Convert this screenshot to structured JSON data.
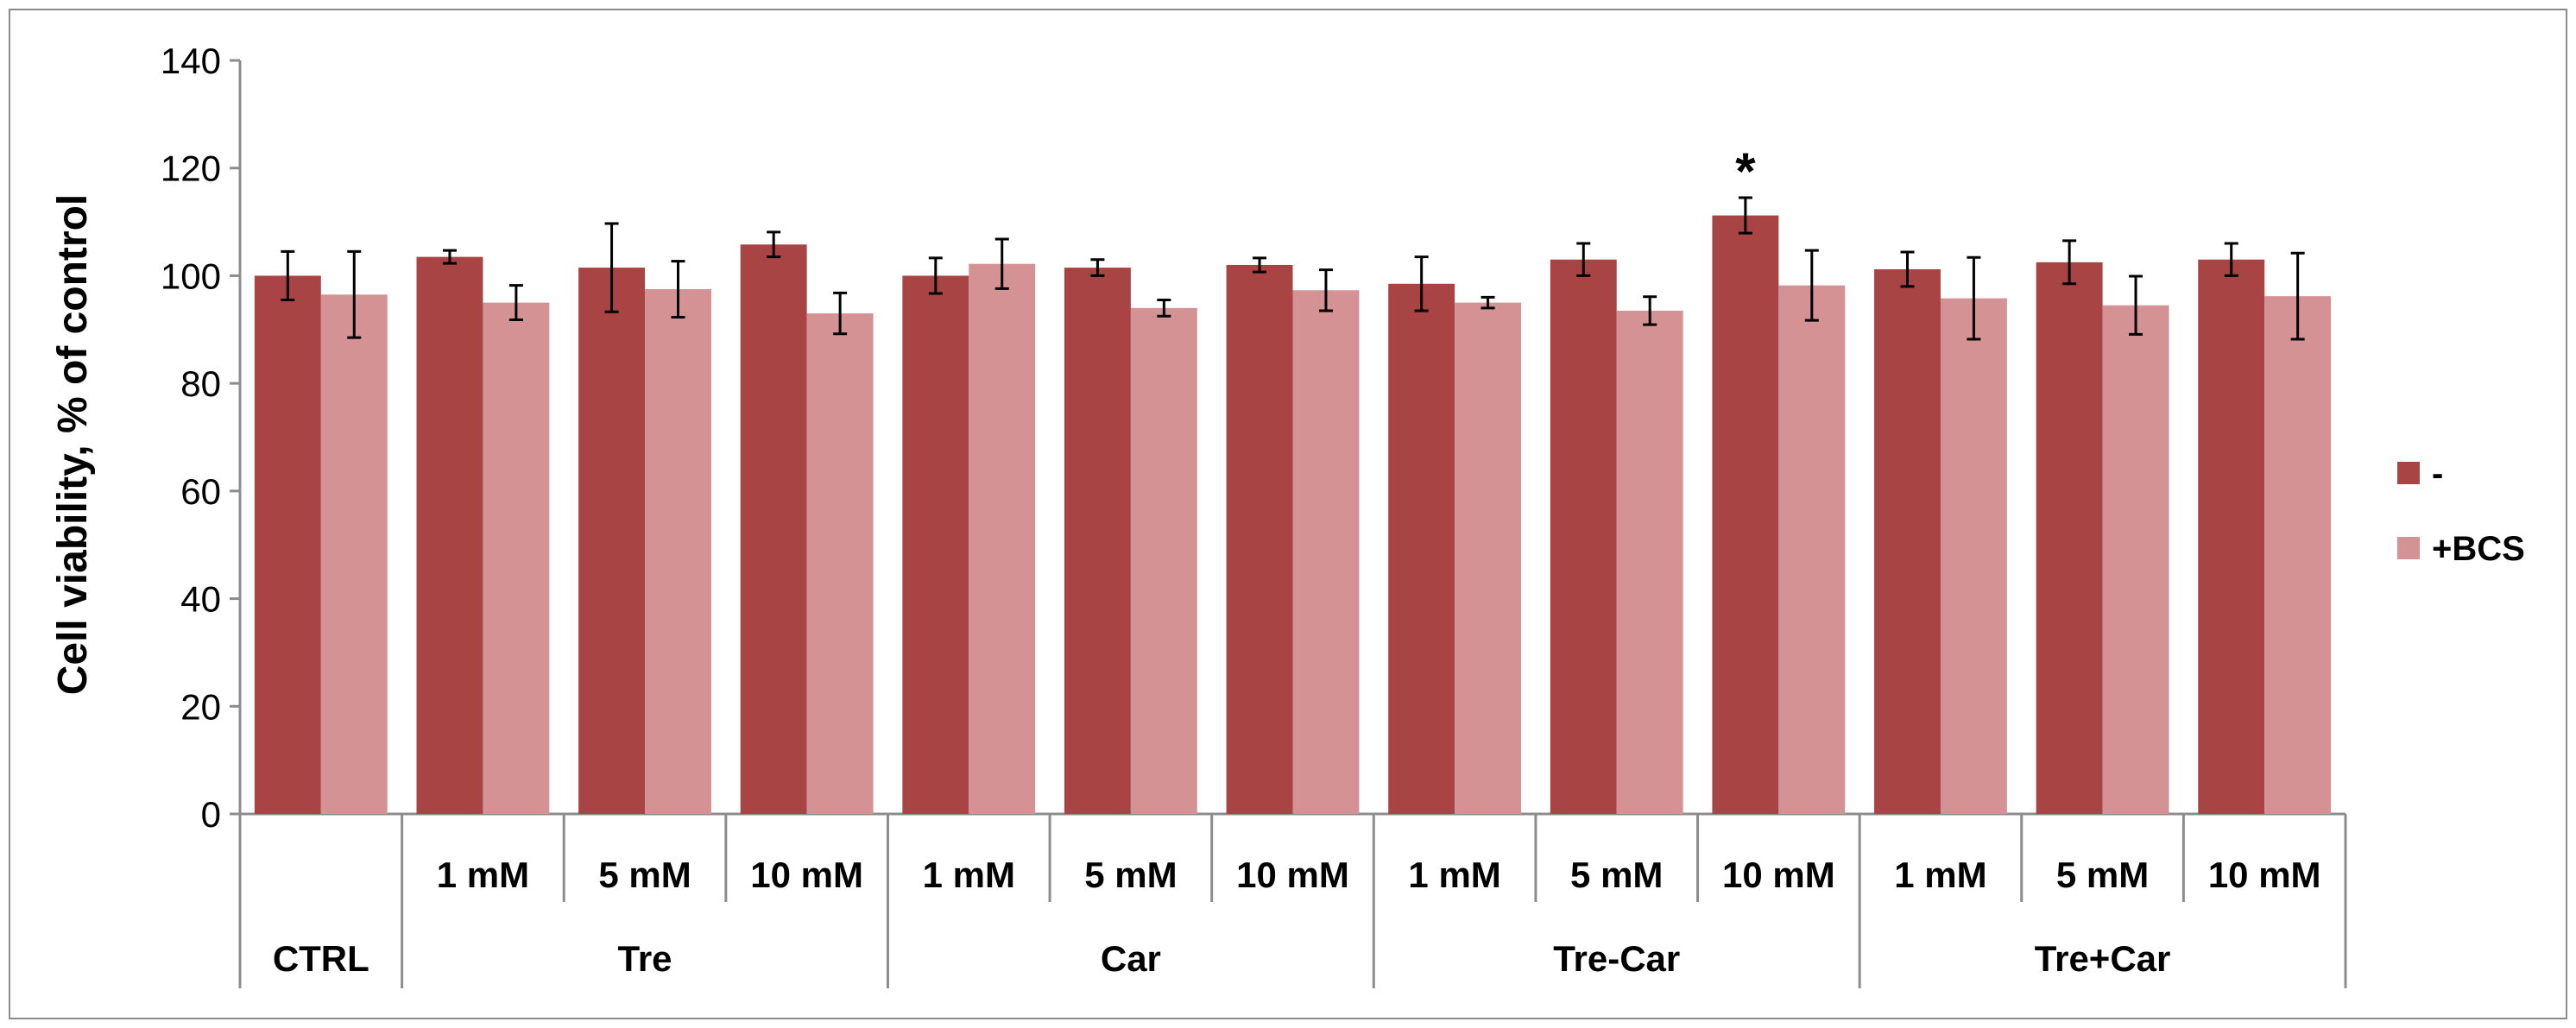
{
  "chart_data": {
    "type": "bar",
    "title": "",
    "xlabel": "",
    "ylabel": "Cell viability, % of control",
    "ylim": [
      0,
      140
    ],
    "yticks": [
      0,
      20,
      40,
      60,
      80,
      100,
      120,
      140
    ],
    "grid": false,
    "legend_position": "right",
    "categories": [
      "",
      "1 mM",
      "5 mM",
      "10 mM",
      "1 mM",
      "5 mM",
      "10 mM",
      "1 mM",
      "5 mM",
      "10 mM",
      "1 mM",
      "5 mM",
      "10 mM"
    ],
    "groups": [
      {
        "label": "CTRL",
        "count": 1
      },
      {
        "label": "Tre",
        "count": 3
      },
      {
        "label": "Car",
        "count": 3
      },
      {
        "label": "Tre-Car",
        "count": 3
      },
      {
        "label": "Tre+Car",
        "count": 3
      }
    ],
    "series": [
      {
        "name": "-",
        "color": "#a84444",
        "values": [
          100,
          103.5,
          101.5,
          105.8,
          100,
          101.5,
          102,
          98.5,
          103,
          111.2,
          101.2,
          102.5,
          103
        ],
        "errors": [
          4.5,
          1.2,
          8.2,
          2.3,
          3.3,
          1.5,
          1.3,
          5.0,
          3.0,
          3.3,
          3.2,
          4.0,
          3.0
        ]
      },
      {
        "name": "+BCS",
        "color": "#d49294",
        "values": [
          96.5,
          95,
          97.5,
          93,
          102.2,
          94,
          97.3,
          95,
          93.5,
          98.2,
          95.8,
          94.5,
          96.2
        ],
        "errors": [
          8.0,
          3.2,
          5.2,
          3.8,
          4.6,
          1.5,
          3.8,
          1.0,
          2.6,
          6.5,
          7.6,
          5.4,
          8.0
        ]
      }
    ],
    "annotations": [
      {
        "text": "*",
        "series": "-",
        "category_index": 9
      }
    ]
  }
}
